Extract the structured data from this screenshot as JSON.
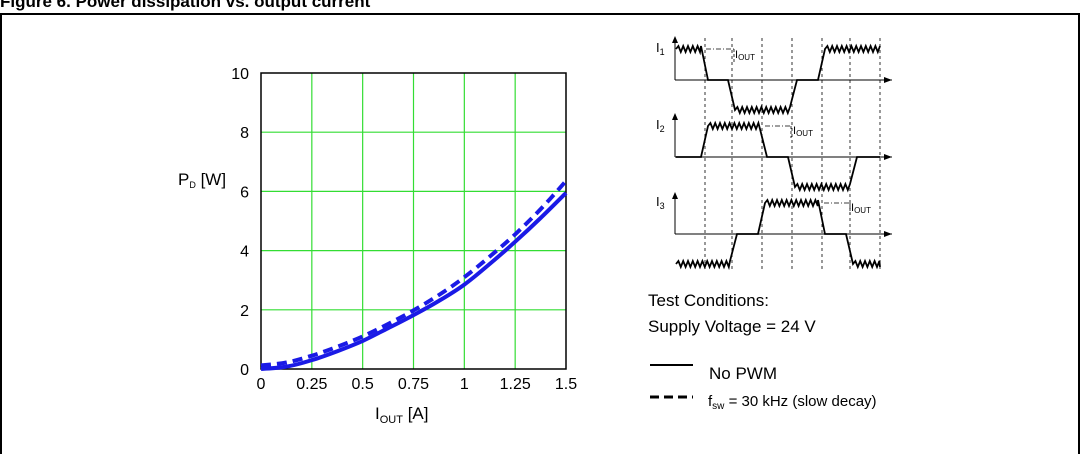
{
  "caption": "Figure 6. Power dissipation vs. output current",
  "chart_data": {
    "type": "line",
    "title": "",
    "ylabel_main": "P",
    "ylabel_sub": "D",
    "ylabel_unit": "[W]",
    "xlabel_main": "I",
    "xlabel_sub": "OUT",
    "xlabel_unit": "[A]",
    "xlim": [
      0,
      1.5
    ],
    "ylim": [
      0,
      10
    ],
    "xticks": [
      0,
      0.25,
      0.5,
      0.75,
      1,
      1.25,
      1.5
    ],
    "xtick_labels": [
      "0",
      "0.25",
      "0.5",
      "0.75",
      "1",
      "1.25",
      "1.5"
    ],
    "yticks": [
      0,
      2,
      4,
      6,
      8,
      10
    ],
    "ytick_labels": [
      "0",
      "2",
      "4",
      "6",
      "8",
      "10"
    ],
    "grid": true,
    "grid_color": "#33dd33",
    "line_color": "#1a1ae6",
    "series": [
      {
        "name": "No PWM",
        "style": "solid",
        "x": [
          0,
          0.125,
          0.25,
          0.375,
          0.5,
          0.625,
          0.75,
          0.875,
          1.0,
          1.125,
          1.25,
          1.375,
          1.5
        ],
        "y": [
          0.0,
          0.08,
          0.3,
          0.6,
          0.95,
          1.38,
          1.82,
          2.3,
          2.85,
          3.55,
          4.3,
          5.1,
          5.95
        ]
      },
      {
        "name": "f_sw = 30 kHz (slow decay)",
        "style": "dashed",
        "x": [
          0,
          0.125,
          0.25,
          0.375,
          0.5,
          0.625,
          0.75,
          0.875,
          1.0,
          1.125,
          1.25,
          1.375,
          1.5
        ],
        "y": [
          0.12,
          0.22,
          0.45,
          0.75,
          1.1,
          1.52,
          1.98,
          2.5,
          3.1,
          3.8,
          4.55,
          5.4,
          6.35
        ]
      }
    ]
  },
  "waveforms": {
    "rows": [
      {
        "label": "I",
        "sub": "1",
        "out_main": "I",
        "out_sub": "OUT"
      },
      {
        "label": "I",
        "sub": "2",
        "out_main": "I",
        "out_sub": "OUT"
      },
      {
        "label": "I",
        "sub": "3",
        "out_main": "I",
        "out_sub": "OUT"
      }
    ]
  },
  "test_conditions": {
    "title": "Test Conditions:",
    "supply": "Supply Voltage = 24 V"
  },
  "legend": {
    "solid_label": "No PWM",
    "dashed_main": "f",
    "dashed_sub": "sw",
    "dashed_rest": " = 30 kHz (slow decay)"
  }
}
